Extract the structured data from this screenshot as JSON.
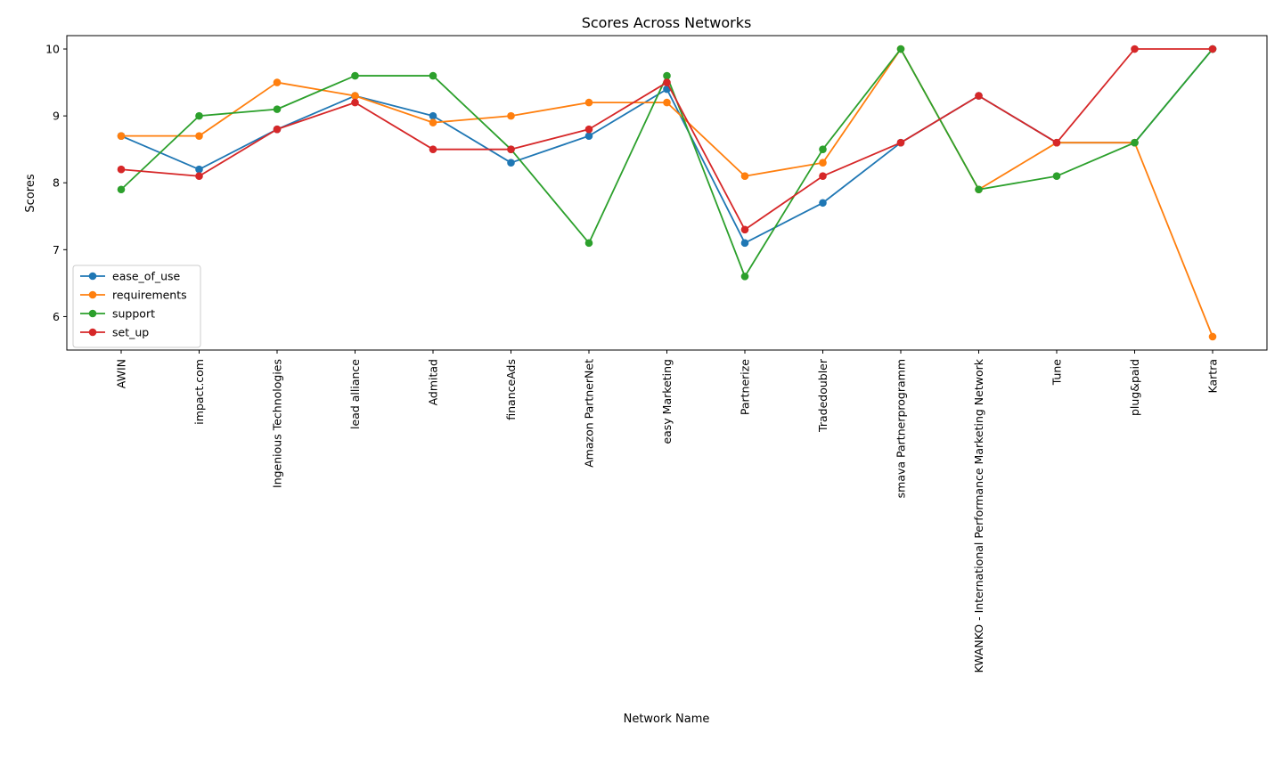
{
  "chart_data": {
    "type": "line",
    "title": "Scores Across Networks",
    "xlabel": "Network Name",
    "ylabel": "Scores",
    "categories": [
      "AWIN",
      "impact.com",
      "Ingenious Technologies",
      "lead alliance",
      "Admitad",
      "financeAds",
      "Amazon PartnerNet",
      "easy Marketing",
      "Partnerize",
      "Tradedoubler",
      "smava Partnerprogramm",
      "KWANKO - International Performance Marketing Network",
      "Tune",
      "plug&paid",
      "Kartra"
    ],
    "yticks": [
      6,
      7,
      8,
      9,
      10
    ],
    "ylim": [
      5.5,
      10.2
    ],
    "grid": false,
    "legend_position": "center-left",
    "series": [
      {
        "name": "ease_of_use",
        "color": "#1f77b4",
        "values": [
          8.7,
          8.2,
          8.8,
          9.3,
          9.0,
          8.3,
          8.7,
          9.4,
          7.1,
          7.7,
          8.6,
          9.3,
          8.6,
          8.6,
          10.0
        ]
      },
      {
        "name": "requirements",
        "color": "#ff7f0e",
        "values": [
          8.7,
          8.7,
          9.5,
          9.3,
          8.9,
          9.0,
          9.2,
          9.2,
          8.1,
          8.3,
          10.0,
          7.9,
          8.6,
          8.6,
          5.7
        ]
      },
      {
        "name": "support",
        "color": "#2ca02c",
        "values": [
          7.9,
          9.0,
          9.1,
          9.6,
          9.6,
          8.5,
          7.1,
          9.6,
          6.6,
          8.5,
          10.0,
          7.9,
          8.1,
          8.6,
          10.0
        ]
      },
      {
        "name": "set_up",
        "color": "#d62728",
        "values": [
          8.2,
          8.1,
          8.8,
          9.2,
          8.5,
          8.5,
          8.8,
          9.5,
          7.3,
          8.1,
          8.6,
          9.3,
          8.6,
          10.0,
          10.0
        ]
      }
    ]
  }
}
